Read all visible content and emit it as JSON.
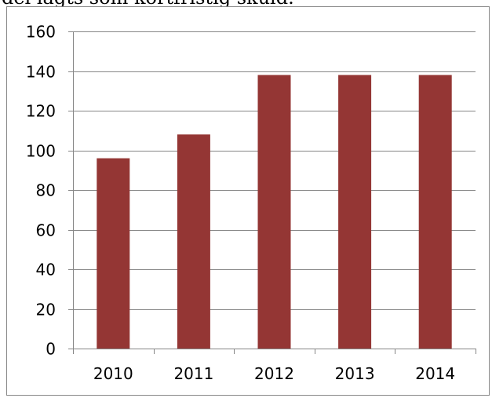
{
  "header_text": "del lagts som kortfristig skuld.",
  "colors": {
    "bar": "#943634",
    "gridline": "#868686",
    "axis": "#868686",
    "frame": "#888888"
  },
  "chart_data": {
    "type": "bar",
    "categories": [
      "2010",
      "2011",
      "2012",
      "2013",
      "2014"
    ],
    "values": [
      96,
      108,
      138,
      138,
      138
    ],
    "title": "",
    "xlabel": "",
    "ylabel": "",
    "ylim": [
      0,
      160
    ],
    "yticks": [
      0,
      20,
      40,
      60,
      80,
      100,
      120,
      140,
      160
    ],
    "grid": true,
    "legend": "none"
  }
}
